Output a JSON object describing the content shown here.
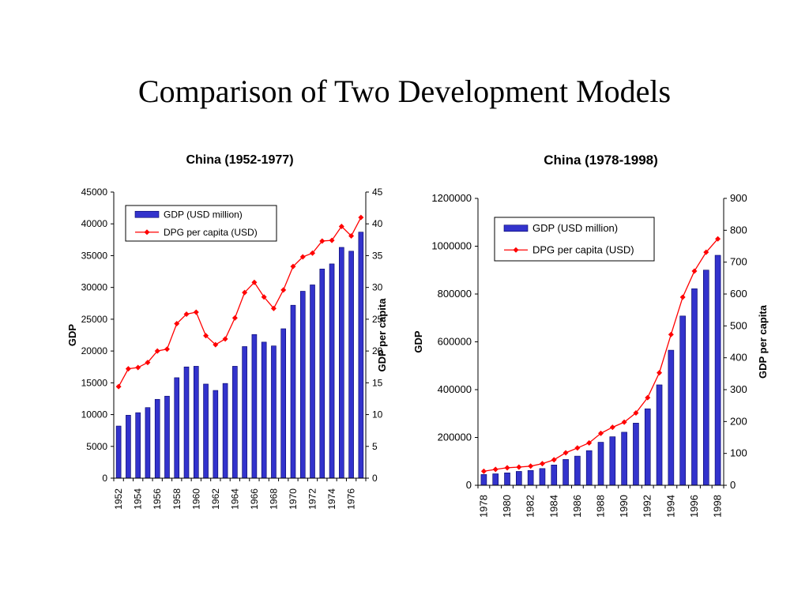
{
  "slide": {
    "title": "Comparison of Two Development Models"
  },
  "colors": {
    "bar_fill": "#3333cc",
    "bar_stroke": "#000066",
    "line": "#ff0000",
    "axis": "#000000"
  },
  "chart_data": [
    {
      "type": "bar",
      "title": "China (1952-1977)",
      "ylabel": "GDP",
      "y2label": "GDP per capita",
      "ylim": [
        0,
        45000
      ],
      "yticks": [
        0,
        5000,
        10000,
        15000,
        20000,
        25000,
        30000,
        35000,
        40000,
        45000
      ],
      "y2lim": [
        0,
        45
      ],
      "y2ticks": [
        0,
        5,
        10,
        15,
        20,
        25,
        30,
        35,
        40,
        45
      ],
      "categories": [
        1952,
        1953,
        1954,
        1955,
        1956,
        1957,
        1958,
        1959,
        1960,
        1961,
        1962,
        1963,
        1964,
        1965,
        1966,
        1967,
        1968,
        1969,
        1970,
        1971,
        1972,
        1973,
        1974,
        1975,
        1976,
        1977
      ],
      "xticklabels": [
        "1952",
        "1954",
        "1956",
        "1958",
        "1960",
        "1962",
        "1964",
        "1966",
        "1968",
        "1970",
        "1972",
        "1974",
        "1976"
      ],
      "legend_position": "top-left",
      "series": [
        {
          "name": "GDP (USD million)",
          "type": "bar",
          "axis": "left",
          "values": [
            8200,
            9900,
            10300,
            11100,
            12400,
            12900,
            15800,
            17500,
            17600,
            14800,
            13800,
            14900,
            17600,
            20700,
            22600,
            21400,
            20800,
            23500,
            27200,
            29400,
            30400,
            32900,
            33700,
            36300,
            35700,
            38700
          ]
        },
        {
          "name": "DPG per capita (USD)",
          "type": "line",
          "axis": "right",
          "values": [
            14.4,
            17.2,
            17.4,
            18.2,
            20.0,
            20.3,
            24.3,
            25.8,
            26.1,
            22.4,
            21.0,
            21.9,
            25.2,
            29.2,
            30.8,
            28.5,
            26.7,
            29.6,
            33.3,
            34.8,
            35.4,
            37.3,
            37.4,
            39.6,
            38.1,
            41.0
          ]
        }
      ]
    },
    {
      "type": "bar",
      "title": "China (1978-1998)",
      "ylabel": "GDP",
      "y2label": "GDP per capita",
      "ylim": [
        0,
        1200000
      ],
      "yticks": [
        0,
        200000,
        400000,
        600000,
        800000,
        1000000,
        1200000
      ],
      "y2lim": [
        0,
        900
      ],
      "y2ticks": [
        0,
        100,
        200,
        300,
        400,
        500,
        600,
        700,
        800,
        900
      ],
      "categories": [
        1978,
        1979,
        1980,
        1981,
        1982,
        1983,
        1984,
        1985,
        1986,
        1987,
        1988,
        1989,
        1990,
        1991,
        1992,
        1993,
        1994,
        1995,
        1996,
        1997,
        1998
      ],
      "xticklabels": [
        "1978",
        "1980",
        "1982",
        "1984",
        "1986",
        "1988",
        "1990",
        "1992",
        "1994",
        "1996",
        "1998"
      ],
      "legend_position": "top-left",
      "series": [
        {
          "name": "GDP (USD million)",
          "type": "bar",
          "axis": "left",
          "values": [
            45000,
            48000,
            52000,
            58000,
            62000,
            70000,
            85000,
            108000,
            122000,
            145000,
            180000,
            203000,
            222000,
            260000,
            320000,
            420000,
            565000,
            708000,
            822000,
            900000,
            962000
          ]
        },
        {
          "name": "DPG per capita (USD)",
          "type": "line",
          "axis": "right",
          "values": [
            44,
            50,
            55,
            57,
            60,
            68,
            80,
            102,
            117,
            133,
            163,
            182,
            198,
            227,
            275,
            353,
            473,
            590,
            672,
            731,
            773
          ]
        }
      ]
    }
  ]
}
